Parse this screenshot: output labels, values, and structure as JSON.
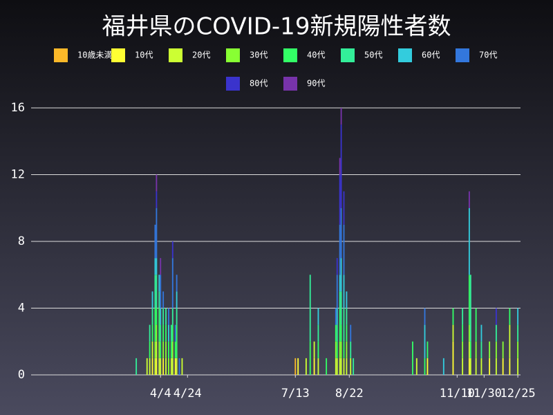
{
  "chart_data": {
    "type": "bar",
    "stacked": true,
    "title": "福井県のCOVID-19新規陽性者数",
    "x": [
      78,
      86,
      88,
      90,
      92,
      93,
      95,
      96,
      98,
      100,
      102,
      104,
      105,
      107,
      108,
      110,
      112,
      196,
      198,
      204,
      207,
      210,
      213,
      219,
      226,
      227,
      229,
      230,
      232,
      234,
      237,
      239,
      283,
      286,
      292,
      294,
      306,
      313,
      320,
      325,
      326,
      330,
      334,
      340,
      345,
      350,
      355,
      361
    ],
    "xlim": [
      0,
      363
    ],
    "xticks": [
      {
        "value": 96,
        "label": "4/4"
      },
      {
        "value": 116,
        "label": "4/24"
      },
      {
        "value": 196,
        "label": "7/13"
      },
      {
        "value": 236,
        "label": "8/22"
      },
      {
        "value": 316,
        "label": "11/10"
      },
      {
        "value": 336,
        "label": "11/30"
      },
      {
        "value": 361,
        "label": "12/25"
      }
    ],
    "ylim": [
      0,
      16
    ],
    "yticks": [
      0,
      4,
      8,
      12,
      16
    ],
    "grid": true,
    "series": [
      {
        "name": "10歳未満",
        "color": "#fbb829",
        "values": [
          0,
          0,
          0,
          0,
          0,
          0,
          0,
          0,
          0,
          0,
          0,
          0,
          0,
          0,
          0,
          0,
          0,
          1,
          0,
          0,
          0,
          0,
          0,
          0,
          0,
          0,
          0,
          0,
          0,
          0,
          0,
          0,
          0,
          0,
          0,
          0,
          0,
          0,
          0,
          0,
          0,
          0,
          0,
          0,
          0,
          0,
          0,
          0
        ]
      },
      {
        "name": "10代",
        "color": "#ffff33",
        "values": [
          0,
          0,
          0,
          1,
          0,
          1,
          0,
          0,
          1,
          0,
          0,
          0,
          0,
          1,
          0,
          0,
          0,
          0,
          1,
          0,
          0,
          1,
          0,
          0,
          0,
          0,
          0,
          0,
          0,
          0,
          0,
          0,
          0,
          0,
          0,
          1,
          0,
          2,
          0,
          1,
          0,
          0,
          0,
          1,
          0,
          1,
          1,
          0
        ]
      },
      {
        "name": "20代",
        "color": "#ccff33",
        "values": [
          0,
          1,
          1,
          1,
          1,
          1,
          1,
          1,
          0,
          1,
          0,
          1,
          1,
          0,
          1,
          0,
          1,
          0,
          0,
          1,
          0,
          1,
          1,
          0,
          1,
          1,
          1,
          1,
          1,
          1,
          1,
          0,
          0,
          1,
          0,
          0,
          0,
          1,
          1,
          1,
          1,
          1,
          1,
          0,
          1,
          0,
          2,
          1
        ]
      },
      {
        "name": "30代",
        "color": "#88ff33",
        "values": [
          0,
          0,
          0,
          0,
          1,
          1,
          1,
          0,
          1,
          1,
          1,
          0,
          1,
          0,
          0,
          0,
          0,
          0,
          0,
          0,
          0,
          0,
          0,
          0,
          1,
          0,
          1,
          1,
          0,
          1,
          0,
          0,
          0,
          0,
          0,
          0,
          0,
          0,
          1,
          1,
          0,
          1,
          0,
          1,
          1,
          1,
          0,
          1
        ]
      },
      {
        "name": "40代",
        "color": "#33ff66",
        "values": [
          0,
          0,
          1,
          1,
          2,
          1,
          2,
          1,
          1,
          1,
          1,
          1,
          1,
          1,
          2,
          0,
          0,
          0,
          0,
          0,
          2,
          0,
          1,
          1,
          1,
          1,
          2,
          1,
          1,
          1,
          0,
          0,
          2,
          0,
          1,
          1,
          0,
          1,
          1,
          3,
          1,
          2,
          0,
          0,
          0,
          0,
          1,
          0
        ]
      },
      {
        "name": "50代",
        "color": "#33ee99",
        "values": [
          1,
          0,
          1,
          1,
          2,
          2,
          1,
          1,
          1,
          1,
          0,
          1,
          1,
          0,
          1,
          0,
          0,
          0,
          0,
          0,
          4,
          0,
          1,
          0,
          0,
          1,
          1,
          2,
          2,
          1,
          1,
          1,
          0,
          0,
          0,
          0,
          0,
          0,
          1,
          0,
          4,
          0,
          1,
          0,
          1,
          0,
          0,
          1
        ]
      },
      {
        "name": "60代",
        "color": "#33ccdd",
        "values": [
          0,
          0,
          0,
          1,
          1,
          1,
          1,
          1,
          0,
          0,
          1,
          0,
          0,
          0,
          1,
          0,
          0,
          0,
          0,
          0,
          0,
          0,
          1,
          0,
          0,
          1,
          1,
          2,
          2,
          1,
          0,
          0,
          0,
          0,
          2,
          0,
          1,
          0,
          0,
          4,
          0,
          0,
          1,
          0,
          0,
          0,
          0,
          1
        ]
      },
      {
        "name": "70代",
        "color": "#3377dd",
        "values": [
          0,
          0,
          0,
          0,
          2,
          3,
          0,
          2,
          1,
          0,
          1,
          0,
          3,
          1,
          1,
          1,
          0,
          0,
          0,
          0,
          0,
          0,
          0,
          0,
          1,
          2,
          3,
          3,
          3,
          0,
          1,
          0,
          0,
          0,
          1,
          0,
          0,
          0,
          0,
          0,
          0,
          0,
          0,
          0,
          0,
          0,
          0,
          0
        ]
      },
      {
        "name": "80代",
        "color": "#3a33cc",
        "values": [
          0,
          0,
          0,
          0,
          0,
          1,
          0,
          0,
          0,
          0,
          0,
          0,
          1,
          0,
          0,
          0,
          0,
          0,
          0,
          0,
          0,
          0,
          0,
          0,
          0,
          1,
          3,
          5,
          2,
          0,
          0,
          0,
          0,
          0,
          0,
          0,
          0,
          0,
          0,
          0,
          0,
          0,
          0,
          0,
          1,
          0,
          0,
          0
        ]
      },
      {
        "name": "90代",
        "color": "#7733aa",
        "values": [
          0,
          0,
          0,
          0,
          0,
          1,
          0,
          1,
          0,
          0,
          0,
          0,
          0,
          0,
          0,
          0,
          0,
          0,
          0,
          0,
          0,
          0,
          0,
          0,
          0,
          0,
          1,
          1,
          0,
          0,
          0,
          0,
          0,
          0,
          0,
          0,
          0,
          0,
          0,
          1,
          0,
          0,
          0,
          0,
          0,
          0,
          0,
          0
        ]
      }
    ]
  }
}
